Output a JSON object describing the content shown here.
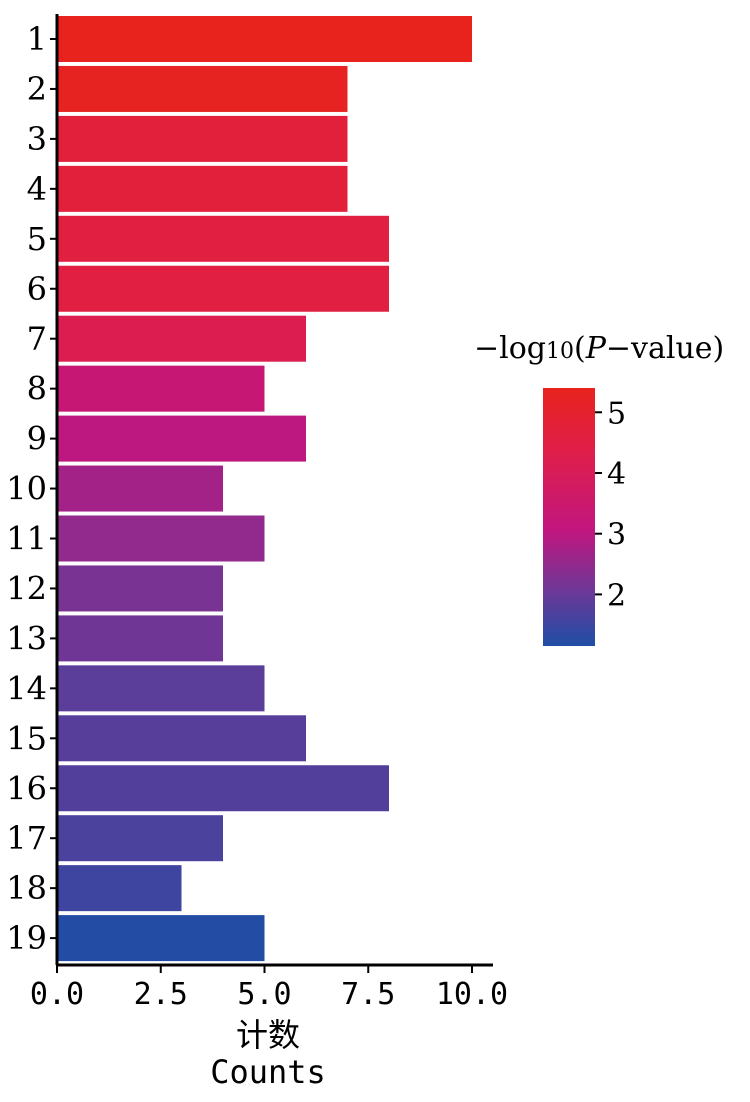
{
  "chart_data": {
    "type": "bar",
    "orientation": "horizontal",
    "categories": [
      "1",
      "2",
      "3",
      "4",
      "5",
      "6",
      "7",
      "8",
      "9",
      "10",
      "11",
      "12",
      "13",
      "14",
      "15",
      "16",
      "17",
      "18",
      "19"
    ],
    "values": [
      10,
      7,
      7,
      7,
      8,
      8,
      6,
      5,
      6,
      4,
      5,
      4,
      4,
      5,
      6,
      8,
      4,
      3,
      5
    ],
    "color_values": [
      5.4,
      5.3,
      4.7,
      4.7,
      4.55,
      4.5,
      4.2,
      3.3,
      3.0,
      2.7,
      2.5,
      2.2,
      2.1,
      1.85,
      1.8,
      1.75,
      1.65,
      1.5,
      1.2
    ],
    "xlabel_cn": "计数",
    "xlabel": "Counts",
    "xlim": [
      0,
      10.5
    ],
    "xticks": [
      "0.0",
      "2.5",
      "5.0",
      "7.5",
      "10.0"
    ],
    "xtick_values": [
      0,
      2.5,
      5.0,
      7.5,
      10.0
    ],
    "legend": {
      "title_prefix": "−log",
      "title_sub": "10",
      "title_p": "P",
      "title_suffix": "−value)",
      "title_open": "(",
      "ticks": [
        "5",
        "4",
        "3",
        "2"
      ],
      "tick_values": [
        5,
        4,
        3,
        2
      ],
      "range": [
        1.15,
        5.4
      ],
      "colors": [
        "#e8231d",
        "#df1e4a",
        "#c2167f",
        "#6f3796",
        "#1f4ea6"
      ],
      "placement": "right"
    },
    "grid": false
  }
}
